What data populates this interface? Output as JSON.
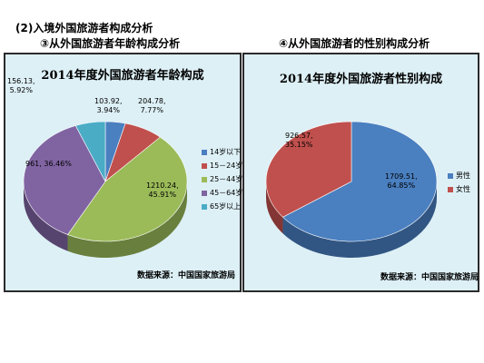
{
  "header": {
    "line1": "(2)入境外国旅游者构成分析",
    "line2": "③从外国旅游者年龄构成分析",
    "line3": "④从外国旅游者的性别构成分析"
  },
  "chart_data": [
    {
      "type": "pie",
      "title": "2014年度外国旅游者年龄构成",
      "source": "数据来源：中国国家旅游局",
      "legend_position": "right",
      "categories": [
        "14岁以下",
        "15－24岁",
        "25－44岁",
        "45－64岁",
        "65岁以上"
      ],
      "values": [
        103.92,
        204.78,
        1210.24,
        961,
        156.13
      ],
      "percent_labels": [
        "3.94%",
        "7.77%",
        "45.91%",
        "36.46%",
        "5.92%"
      ],
      "value_labels": [
        "103.92,",
        "204.78,",
        "1210.24,",
        "961, 36.46%",
        "156.13,"
      ],
      "colors": [
        "#4a7fc0",
        "#c0504d",
        "#9bbb59",
        "#8064a2",
        "#4bacc6"
      ]
    },
    {
      "type": "pie",
      "title": "2014年度外国旅游者性别构成",
      "source": "数据来源：中国国家旅游局",
      "legend_position": "right",
      "categories": [
        "男性",
        "女性"
      ],
      "values": [
        1709.51,
        926.57
      ],
      "percent_labels": [
        "64.85%",
        "35.15%"
      ],
      "value_labels": [
        "1709.51,",
        "926.57,"
      ],
      "colors": [
        "#4a7fc0",
        "#c0504d"
      ]
    }
  ]
}
